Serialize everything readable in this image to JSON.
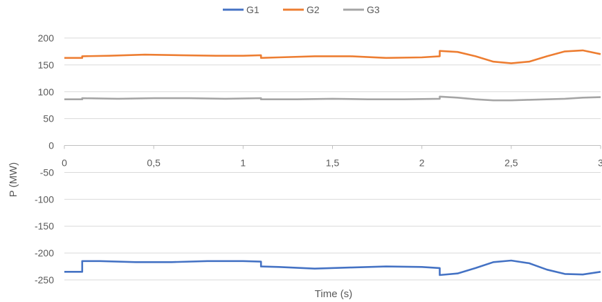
{
  "chart_data": {
    "type": "line",
    "title": "",
    "xlabel": "Time (s)",
    "ylabel": "P (MW)",
    "xlim": [
      0,
      3
    ],
    "ylim": [
      -250,
      200
    ],
    "x_ticks": [
      0,
      0.5,
      1,
      1.5,
      2,
      2.5,
      3
    ],
    "x_tick_labels": [
      "0",
      "0,5",
      "1",
      "1,5",
      "2",
      "2,5",
      "3"
    ],
    "y_ticks": [
      200,
      150,
      100,
      50,
      0,
      -50,
      -100,
      -150,
      -200,
      -250
    ],
    "y_tick_labels": [
      "200",
      "150",
      "100",
      "50",
      "0",
      "-50",
      "-100",
      "-150",
      "-200",
      "-250"
    ],
    "grid": "horizontal",
    "legend_position": "top",
    "series": [
      {
        "name": "G1",
        "color": "#4472C4",
        "points": [
          [
            0,
            -235
          ],
          [
            0.1,
            -235
          ],
          [
            0.1,
            -215
          ],
          [
            0.2,
            -215
          ],
          [
            0.4,
            -217
          ],
          [
            0.6,
            -217
          ],
          [
            0.8,
            -215
          ],
          [
            1.0,
            -215
          ],
          [
            1.1,
            -216
          ],
          [
            1.1,
            -225
          ],
          [
            1.2,
            -226
          ],
          [
            1.4,
            -229
          ],
          [
            1.6,
            -227
          ],
          [
            1.8,
            -225
          ],
          [
            2.0,
            -226
          ],
          [
            2.1,
            -228
          ],
          [
            2.1,
            -241
          ],
          [
            2.2,
            -238
          ],
          [
            2.3,
            -228
          ],
          [
            2.4,
            -217
          ],
          [
            2.5,
            -214
          ],
          [
            2.6,
            -219
          ],
          [
            2.7,
            -231
          ],
          [
            2.8,
            -239
          ],
          [
            2.9,
            -240
          ],
          [
            3.0,
            -235
          ]
        ]
      },
      {
        "name": "G2",
        "color": "#ED7D31",
        "points": [
          [
            0,
            163
          ],
          [
            0.1,
            163
          ],
          [
            0.1,
            166
          ],
          [
            0.25,
            167
          ],
          [
            0.45,
            169
          ],
          [
            0.65,
            168
          ],
          [
            0.85,
            167
          ],
          [
            1.0,
            167
          ],
          [
            1.1,
            168
          ],
          [
            1.1,
            163
          ],
          [
            1.2,
            164
          ],
          [
            1.4,
            166
          ],
          [
            1.6,
            166
          ],
          [
            1.8,
            163
          ],
          [
            2.0,
            164
          ],
          [
            2.1,
            166
          ],
          [
            2.1,
            176
          ],
          [
            2.2,
            174
          ],
          [
            2.3,
            166
          ],
          [
            2.4,
            156
          ],
          [
            2.5,
            153
          ],
          [
            2.6,
            156
          ],
          [
            2.7,
            166
          ],
          [
            2.8,
            175
          ],
          [
            2.9,
            177
          ],
          [
            3.0,
            170
          ]
        ]
      },
      {
        "name": "G3",
        "color": "#A5A5A5",
        "points": [
          [
            0,
            86
          ],
          [
            0.1,
            86
          ],
          [
            0.1,
            88
          ],
          [
            0.3,
            87
          ],
          [
            0.5,
            88
          ],
          [
            0.7,
            88
          ],
          [
            0.9,
            87
          ],
          [
            1.1,
            88
          ],
          [
            1.1,
            86
          ],
          [
            1.3,
            86
          ],
          [
            1.5,
            87
          ],
          [
            1.7,
            86
          ],
          [
            1.9,
            86
          ],
          [
            2.1,
            87
          ],
          [
            2.1,
            91
          ],
          [
            2.2,
            89
          ],
          [
            2.3,
            86
          ],
          [
            2.4,
            84
          ],
          [
            2.5,
            84
          ],
          [
            2.6,
            85
          ],
          [
            2.7,
            86
          ],
          [
            2.8,
            87
          ],
          [
            2.9,
            89
          ],
          [
            3.0,
            90
          ]
        ]
      }
    ]
  }
}
